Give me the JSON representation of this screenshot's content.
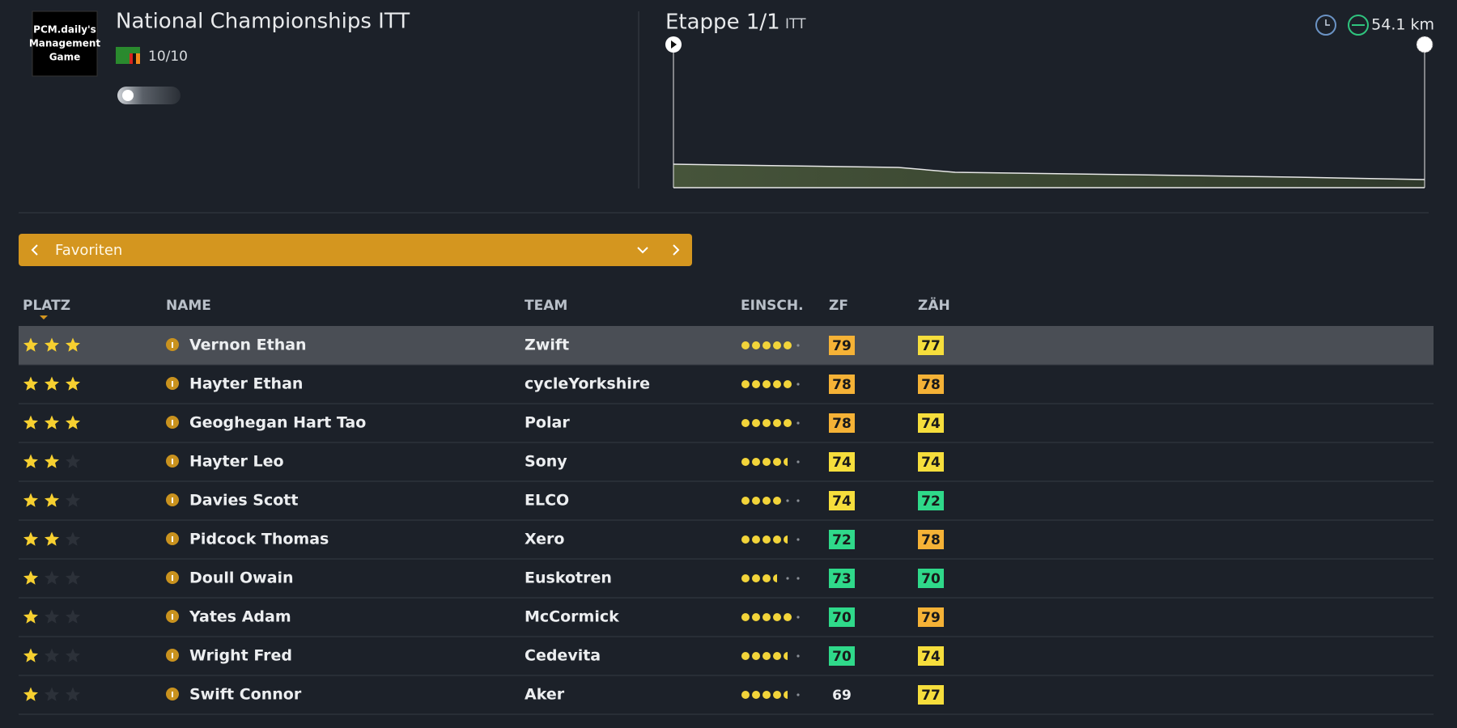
{
  "header": {
    "logo_lines": [
      "PCM.daily's",
      "Management",
      "Game"
    ],
    "race_title": "National Championships ITT",
    "race_rating": "10/10",
    "stage_title": "Etappe 1/1",
    "stage_type": "ITT",
    "distance": "54.1 km"
  },
  "filter": {
    "label": "Favoriten"
  },
  "table": {
    "columns": [
      "PLATZ",
      "NAME",
      "TEAM",
      "EINSCH.",
      "ZF",
      "ZÄH"
    ],
    "rows": [
      {
        "stars": 3,
        "name": "Vernon Ethan",
        "team": "Zwift",
        "form": 5,
        "zf": 79,
        "zah": 77
      },
      {
        "stars": 3,
        "name": "Hayter Ethan",
        "team": "cycleYorkshire",
        "form": 5,
        "zf": 78,
        "zah": 78
      },
      {
        "stars": 3,
        "name": "Geoghegan Hart Tao",
        "team": "Polar",
        "form": 5,
        "zf": 78,
        "zah": 74
      },
      {
        "stars": 2,
        "name": "Hayter Leo",
        "team": "Sony",
        "form": 4.5,
        "zf": 74,
        "zah": 74
      },
      {
        "stars": 2,
        "name": "Davies Scott",
        "team": "ELCO",
        "form": 4,
        "zf": 74,
        "zah": 72
      },
      {
        "stars": 2,
        "name": "Pidcock Thomas",
        "team": "Xero",
        "form": 4.5,
        "zf": 72,
        "zah": 78
      },
      {
        "stars": 1,
        "name": "Doull Owain",
        "team": "Euskotren",
        "form": 3.5,
        "zf": 73,
        "zah": 70
      },
      {
        "stars": 1,
        "name": "Yates Adam",
        "team": "McCormick",
        "form": 5,
        "zf": 70,
        "zah": 79
      },
      {
        "stars": 1,
        "name": "Wright Fred",
        "team": "Cedevita",
        "form": 4.5,
        "zf": 70,
        "zah": 74
      },
      {
        "stars": 1,
        "name": "Swift Connor",
        "team": "Aker",
        "form": 4.5,
        "zf": 69,
        "zah": 77
      }
    ]
  }
}
